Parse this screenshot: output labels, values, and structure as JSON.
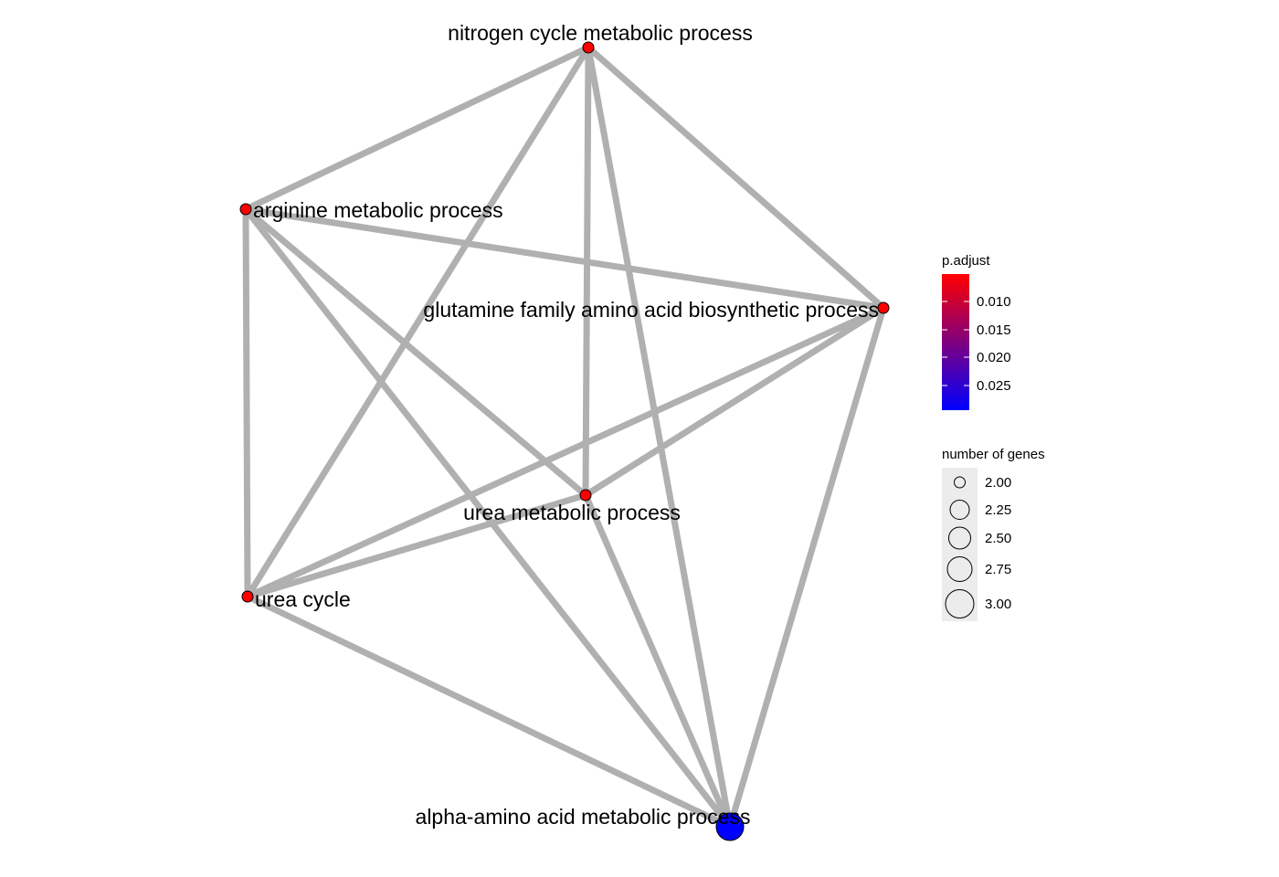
{
  "graph": {
    "nodes": [
      {
        "id": "nitrogen",
        "label": "nitrogen cycle metabolic process",
        "genes": 2,
        "p_adjust": 0.009,
        "color": "#ff0000"
      },
      {
        "id": "arginine",
        "label": "arginine metabolic process",
        "genes": 2,
        "p_adjust": 0.009,
        "color": "#ff0000"
      },
      {
        "id": "glutamine",
        "label": "glutamine family amino acid biosynthetic process",
        "genes": 2,
        "p_adjust": 0.009,
        "color": "#ff0000"
      },
      {
        "id": "urea_metabolic",
        "label": "urea metabolic process",
        "genes": 2,
        "p_adjust": 0.009,
        "color": "#ff0000"
      },
      {
        "id": "urea_cycle",
        "label": "urea cycle",
        "genes": 2,
        "p_adjust": 0.009,
        "color": "#ff0000"
      },
      {
        "id": "alpha_amino",
        "label": "alpha-amino acid metabolic process",
        "genes": 3,
        "p_adjust": 0.029,
        "color": "#0000ff"
      }
    ],
    "edges": [
      [
        "nitrogen",
        "arginine"
      ],
      [
        "nitrogen",
        "glutamine"
      ],
      [
        "nitrogen",
        "urea_metabolic"
      ],
      [
        "nitrogen",
        "urea_cycle"
      ],
      [
        "nitrogen",
        "alpha_amino"
      ],
      [
        "arginine",
        "glutamine"
      ],
      [
        "arginine",
        "urea_metabolic"
      ],
      [
        "arginine",
        "urea_cycle"
      ],
      [
        "arginine",
        "alpha_amino"
      ],
      [
        "glutamine",
        "urea_metabolic"
      ],
      [
        "glutamine",
        "urea_cycle"
      ],
      [
        "glutamine",
        "alpha_amino"
      ],
      [
        "urea_metabolic",
        "urea_cycle"
      ],
      [
        "urea_metabolic",
        "alpha_amino"
      ],
      [
        "urea_cycle",
        "alpha_amino"
      ]
    ]
  },
  "legend_color": {
    "title": "p.adjust",
    "low_color": "#0000ff",
    "high_color": "#ff0000",
    "ticks": [
      "0.010",
      "0.015",
      "0.020",
      "0.025"
    ]
  },
  "legend_size": {
    "title": "number of genes",
    "ticks": [
      "2.00",
      "2.25",
      "2.50",
      "2.75",
      "3.00"
    ]
  },
  "colors": {
    "edge": "#b0b0b0",
    "node_stroke": "#000000",
    "legend_bg": "#ececec"
  }
}
